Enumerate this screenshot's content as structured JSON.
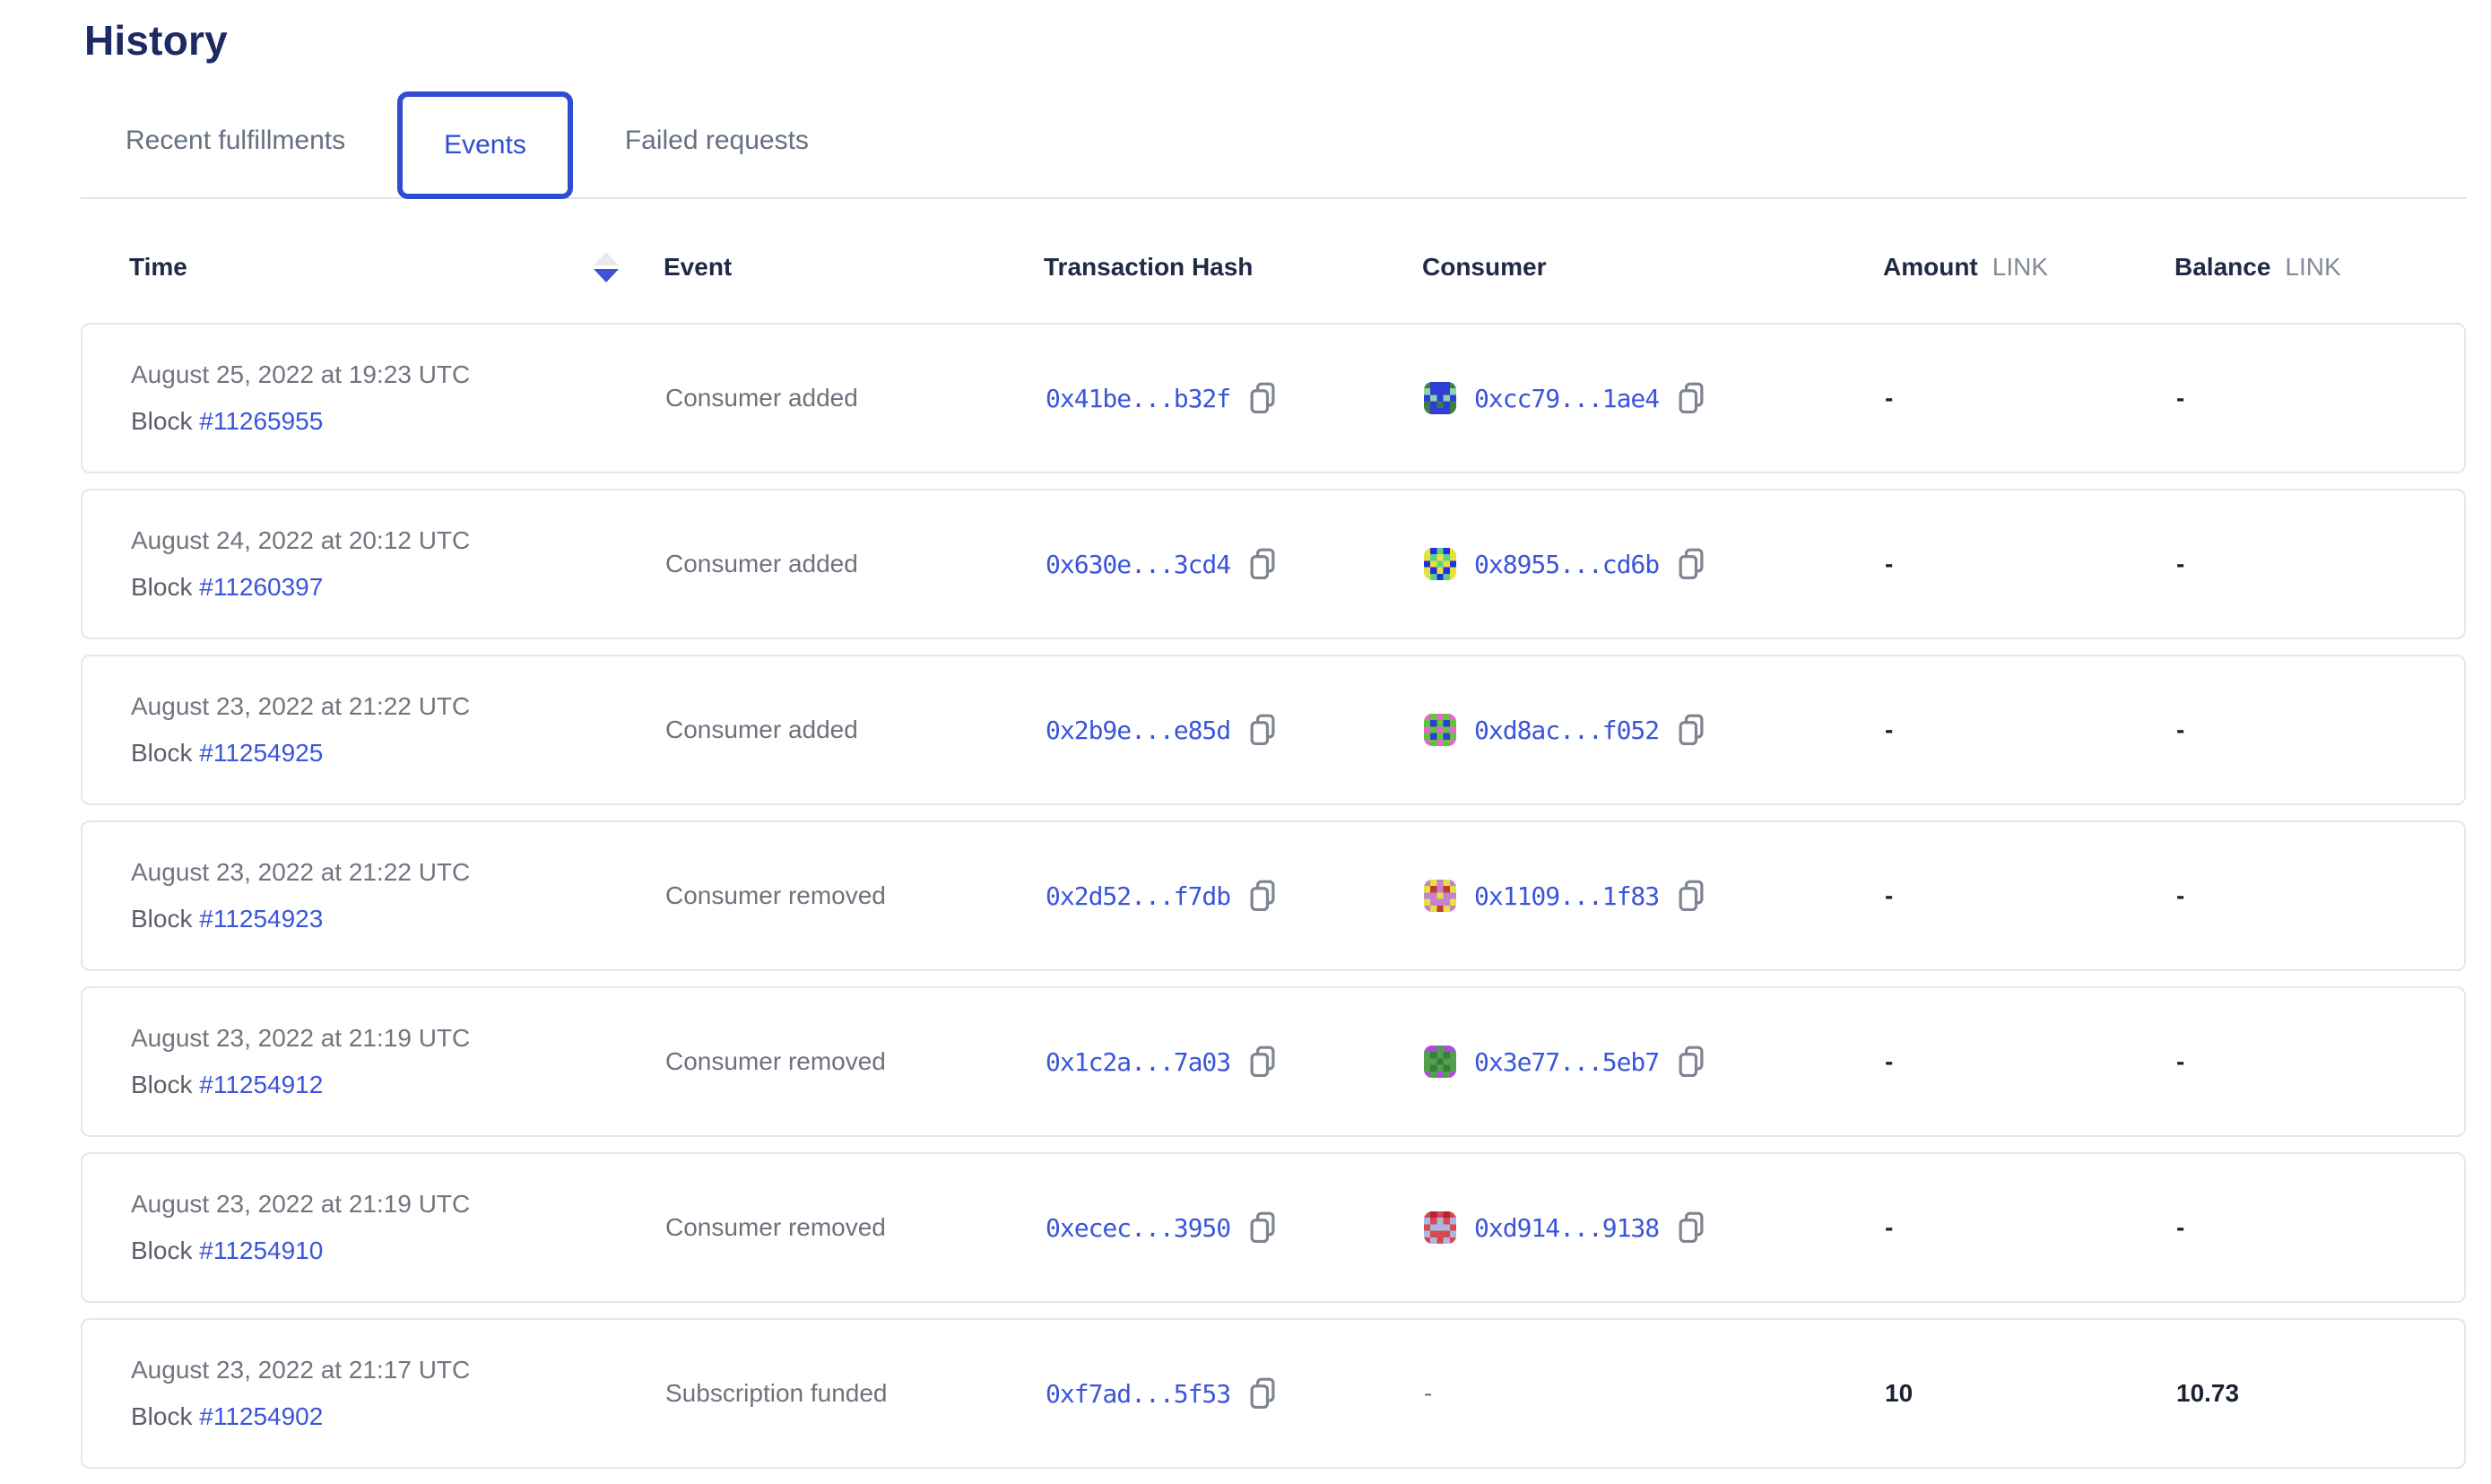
{
  "page": {
    "title": "History"
  },
  "tabs": [
    {
      "label": "Recent fulfillments",
      "active": false
    },
    {
      "label": "Events",
      "active": true
    },
    {
      "label": "Failed requests",
      "active": false
    }
  ],
  "table": {
    "headers": {
      "time": "Time",
      "event": "Event",
      "tx_hash": "Transaction Hash",
      "consumer": "Consumer",
      "amount": "Amount",
      "balance": "Balance",
      "unit": "LINK"
    },
    "rows": [
      {
        "time_date": "August 25, 2022 at 19:23 UTC",
        "block_label": "Block",
        "block_number": "#11265955",
        "event": "Consumer added",
        "tx_hash": "0x41be...b32f",
        "consumer": {
          "address": "0xcc79...1ae4",
          "icon": {
            "palette": [
              "#3f7d45",
              "#2e3ed6",
              "#8fd3ad"
            ],
            "grid": [
              "01110",
              "21112",
              "12121",
              "01010",
              "01110"
            ]
          }
        },
        "amount": "-",
        "balance": "-"
      },
      {
        "time_date": "August 24, 2022 at 20:12 UTC",
        "block_label": "Block",
        "block_number": "#11260397",
        "event": "Consumer added",
        "tx_hash": "0x630e...3cd4",
        "consumer": {
          "address": "0x8955...cd6b",
          "icon": {
            "palette": [
              "#2230dd",
              "#e8e03c",
              "#59d08b"
            ],
            "grid": [
              "10201",
              "12121",
              "01210",
              "10101",
              "12021"
            ]
          }
        },
        "amount": "-",
        "balance": "-"
      },
      {
        "time_date": "August 23, 2022 at 21:22 UTC",
        "block_label": "Block",
        "block_number": "#11254925",
        "event": "Consumer added",
        "tx_hash": "0x2b9e...e85d",
        "consumer": {
          "address": "0xd8ac...f052",
          "icon": {
            "palette": [
              "#63c33b",
              "#e569c7",
              "#2d3fd0"
            ],
            "grid": [
              "10101",
              "02020",
              "10101",
              "02020",
              "10101"
            ]
          }
        },
        "amount": "-",
        "balance": "-"
      },
      {
        "time_date": "August 23, 2022 at 21:22 UTC",
        "block_label": "Block",
        "block_number": "#11254923",
        "event": "Consumer removed",
        "tx_hash": "0x2d52...f7db",
        "consumer": {
          "address": "0x1109...1f83",
          "icon": {
            "palette": [
              "#c67fd2",
              "#e5e13e",
              "#c03a30"
            ],
            "grid": [
              "01010",
              "12021",
              "00100",
              "10001",
              "01210"
            ]
          }
        },
        "amount": "-",
        "balance": "-"
      },
      {
        "time_date": "August 23, 2022 at 21:19 UTC",
        "block_label": "Block",
        "block_number": "#11254912",
        "event": "Consumer removed",
        "tx_hash": "0x1c2a...7a03",
        "consumer": {
          "address": "0x3e77...5eb7",
          "icon": {
            "palette": [
              "#51a04e",
              "#a84fd6",
              "#3c7c3c"
            ],
            "grid": [
              "11011",
              "02020",
              "00200",
              "02020",
              "10101"
            ]
          }
        },
        "amount": "-",
        "balance": "-"
      },
      {
        "time_date": "August 23, 2022 at 21:19 UTC",
        "block_label": "Block",
        "block_number": "#11254910",
        "event": "Consumer removed",
        "tx_hash": "0xecec...3950",
        "consumer": {
          "address": "0xd914...9138",
          "icon": {
            "palette": [
              "#d84850",
              "#aab7e2",
              "#b02830"
            ],
            "grid": [
              "02020",
              "10101",
              "01110",
              "10001",
              "01010"
            ]
          }
        },
        "amount": "-",
        "balance": "-"
      },
      {
        "time_date": "August 23, 2022 at 21:17 UTC",
        "block_label": "Block",
        "block_number": "#11254902",
        "event": "Subscription funded",
        "tx_hash": "0xf7ad...5f53",
        "consumer": {
          "address": null,
          "dash": "-"
        },
        "amount": "10",
        "balance": "10.73"
      }
    ]
  },
  "colors": {
    "accent_blue": "#2f4dd0",
    "link_blue": "#3a55d9",
    "heading_navy": "#1f2a63",
    "header_text": "#202945",
    "body_gray": "#71757f",
    "value_dark": "#1a2332",
    "card_border": "#e5e6e9"
  },
  "icons": {
    "copy": "copy-icon (two overlapping outlined sheets)",
    "sort": "sort-descending-icon (gray up triangle, blue down triangle)"
  }
}
